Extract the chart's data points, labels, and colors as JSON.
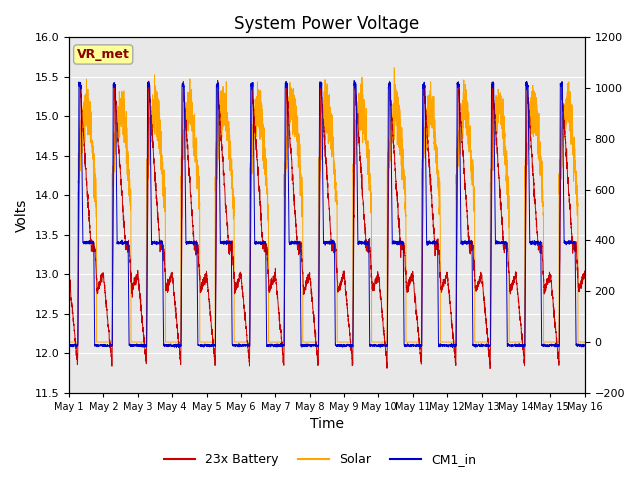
{
  "title": "System Power Voltage",
  "xlabel": "Time",
  "ylabel_left": "Volts",
  "ylim_left": [
    11.5,
    16.0
  ],
  "ylim_right": [
    -200,
    1200
  ],
  "yticks_left": [
    11.5,
    12.0,
    12.5,
    13.0,
    13.5,
    14.0,
    14.5,
    15.0,
    15.5,
    16.0
  ],
  "yticks_right": [
    -200,
    0,
    200,
    400,
    600,
    800,
    1000,
    1200
  ],
  "x_labels": [
    "May 1",
    "May 2",
    "May 3",
    "May 4",
    "May 5",
    "May 6",
    "May 7",
    "May 8",
    "May 9",
    "May 10",
    "May 11",
    "May 12",
    "May 13",
    "May 14",
    "May 15",
    "May 16"
  ],
  "n_days": 15,
  "annotation_text": "VR_met",
  "annotation_color": "#8B0000",
  "annotation_bg": "#FFFF99",
  "annotation_edge": "#AAAAAA",
  "colors": {
    "battery": "#CC0000",
    "solar": "#FFA500",
    "cm1": "#0000CC"
  },
  "legend_labels": [
    "23x Battery",
    "Solar",
    "CM1_in"
  ],
  "background_color": "#E8E8E8",
  "grid_color": "white",
  "title_fontsize": 12,
  "axis_fontsize": 10,
  "tick_fontsize": 8,
  "legend_fontsize": 9
}
